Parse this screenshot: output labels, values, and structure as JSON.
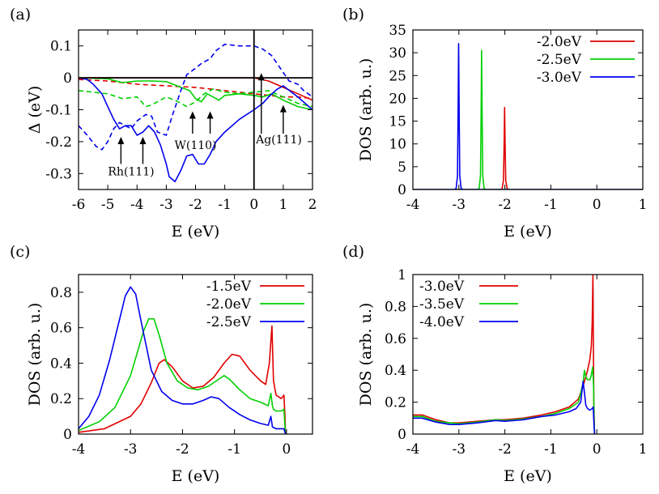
{
  "chart_data": [
    {
      "panel": "(a)",
      "type": "line",
      "xlabel": "E (eV)",
      "ylabel": "Δ (eV)",
      "xlim": [
        -6,
        2
      ],
      "ylim": [
        -0.35,
        0.15
      ],
      "xticks": [
        -6,
        -5,
        -4,
        -3,
        -2,
        -1,
        0,
        1,
        2
      ],
      "xticklabels": [
        "-6",
        "-5",
        "-4",
        "-3",
        "-2",
        "-1",
        "0",
        "1",
        "2"
      ],
      "yticks": [
        0.1,
        0,
        -0.1,
        -0.2,
        -0.3
      ],
      "yticklabels": [
        "0.1",
        "0",
        "-0.1",
        "-0.2",
        "-0.3"
      ],
      "zero_lines": {
        "x": 0,
        "y": 0
      },
      "series": [
        {
          "name": "red solid",
          "color": "#e00000",
          "dash": false,
          "x": [
            -6,
            -4,
            -3,
            -2,
            -1,
            -0.5,
            0,
            0.5,
            1,
            1.5,
            2
          ],
          "y": [
            0,
            0,
            0,
            0,
            0,
            0,
            0,
            -0.01,
            -0.03,
            -0.05,
            -0.07
          ]
        },
        {
          "name": "red dashed",
          "color": "#e00000",
          "dash": true,
          "x": [
            -6,
            -5,
            -4,
            -3,
            -2,
            -1,
            0,
            0.5,
            1,
            1.5,
            2
          ],
          "y": [
            -0.005,
            -0.01,
            -0.02,
            -0.025,
            -0.03,
            -0.04,
            -0.05,
            -0.055,
            -0.06,
            -0.06,
            -0.065
          ]
        },
        {
          "name": "green solid",
          "color": "#00d000",
          "dash": false,
          "x": [
            -6,
            -5,
            -4.5,
            -4,
            -3.5,
            -3,
            -2.5,
            -2.2,
            -2,
            -1.8,
            -1.6,
            -1.4,
            -1.2,
            -1,
            -0.5,
            0,
            0.3,
            0.6,
            1,
            1.5,
            2
          ],
          "y": [
            0,
            -0.003,
            -0.015,
            -0.01,
            -0.01,
            -0.012,
            -0.03,
            -0.04,
            -0.065,
            -0.075,
            -0.05,
            -0.06,
            -0.07,
            -0.055,
            -0.05,
            -0.055,
            -0.06,
            -0.05,
            -0.07,
            -0.09,
            -0.1
          ]
        },
        {
          "name": "green dashed",
          "color": "#00d000",
          "dash": true,
          "x": [
            -6,
            -5,
            -4.5,
            -4,
            -3.7,
            -3.5,
            -3,
            -2.7,
            -2.3,
            -2,
            -1.7,
            -1.4,
            -1,
            -0.5,
            0,
            0.5,
            1,
            1.5,
            2
          ],
          "y": [
            -0.04,
            -0.05,
            -0.065,
            -0.06,
            -0.09,
            -0.085,
            -0.06,
            -0.07,
            -0.09,
            -0.075,
            -0.05,
            -0.035,
            -0.045,
            -0.05,
            -0.045,
            -0.04,
            -0.06,
            -0.08,
            -0.09
          ]
        },
        {
          "name": "blue solid",
          "color": "#0000ee",
          "dash": false,
          "x": [
            -6,
            -5.7,
            -5.5,
            -5.2,
            -5,
            -4.8,
            -4.6,
            -4.4,
            -4.2,
            -4,
            -3.8,
            -3.6,
            -3.4,
            -3.2,
            -3,
            -2.9,
            -2.7,
            -2.5,
            -2.3,
            -2.1,
            -1.9,
            -1.7,
            -1.5,
            -1.3,
            -1,
            -0.5,
            0,
            0.3,
            0.5,
            0.8,
            1,
            1.5,
            2
          ],
          "y": [
            0,
            -0.005,
            -0.02,
            -0.05,
            -0.09,
            -0.13,
            -0.16,
            -0.15,
            -0.15,
            -0.18,
            -0.17,
            -0.15,
            -0.17,
            -0.21,
            -0.27,
            -0.31,
            -0.325,
            -0.29,
            -0.245,
            -0.24,
            -0.27,
            -0.27,
            -0.24,
            -0.2,
            -0.17,
            -0.13,
            -0.1,
            -0.08,
            -0.06,
            -0.035,
            -0.025,
            -0.06,
            -0.1
          ]
        },
        {
          "name": "blue dashed",
          "color": "#0000ee",
          "dash": true,
          "x": [
            -6,
            -5.7,
            -5.4,
            -5.2,
            -5,
            -4.8,
            -4.6,
            -4.4,
            -4.2,
            -4,
            -3.7,
            -3.5,
            -3.3,
            -3,
            -2.8,
            -2.5,
            -2.3,
            -2,
            -1.8,
            -1.5,
            -1.3,
            -1,
            -0.5,
            0,
            0.3,
            0.6,
            0.9,
            1.2,
            1.5,
            1.7,
            2
          ],
          "y": [
            -0.15,
            -0.18,
            -0.215,
            -0.225,
            -0.2,
            -0.16,
            -0.14,
            -0.15,
            -0.16,
            -0.135,
            -0.115,
            -0.12,
            -0.17,
            -0.18,
            -0.12,
            -0.04,
            0.01,
            0.03,
            0.045,
            0.06,
            0.085,
            0.105,
            0.1,
            0.1,
            0.09,
            0.07,
            0.03,
            -0.01,
            -0.02,
            -0.04,
            -0.06
          ]
        }
      ],
      "annotations": [
        {
          "text": "Rh(111)",
          "pos": [
            -4.2,
            -0.305
          ],
          "arrows": [
            [
              -4.55,
              -0.27,
              -4.55,
              -0.185
            ],
            [
              -3.8,
              -0.27,
              -3.8,
              -0.185
            ]
          ]
        },
        {
          "text": "W(110)",
          "pos": [
            -2.0,
            -0.223
          ],
          "arrows": [
            [
              -2.1,
              -0.175,
              -2.1,
              -0.105
            ],
            [
              -1.5,
              -0.175,
              -1.5,
              -0.105
            ]
          ]
        },
        {
          "text": "Ag(111)",
          "pos": [
            0.85,
            -0.205
          ],
          "arrows": [
            [
              0.25,
              -0.175,
              0.25,
              0.015
            ],
            [
              1.0,
              -0.175,
              1.0,
              -0.085
            ]
          ]
        }
      ]
    },
    {
      "panel": "(b)",
      "type": "line",
      "xlabel": "E (eV)",
      "ylabel": "DOS (arb. u.)",
      "xlim": [
        -4,
        1
      ],
      "ylim": [
        0,
        35
      ],
      "xticks": [
        -4,
        -3,
        -2,
        -1,
        0,
        1
      ],
      "xticklabels": [
        "-4",
        "-3",
        "-2",
        "-1",
        "0",
        "1"
      ],
      "yticks": [
        0,
        5,
        10,
        15,
        20,
        25,
        30,
        35
      ],
      "yticklabels": [
        "0",
        "5",
        "10",
        "15",
        "20",
        "25",
        "30",
        "35"
      ],
      "legend_position": "top-right",
      "series": [
        {
          "name": "-2.0eV",
          "color": "#e00000",
          "x": [
            -4,
            -2.1,
            -2.06,
            -2.03,
            -2.015,
            -2.005,
            -1.995,
            -1.98,
            -1.95,
            -1.9,
            1
          ],
          "y": [
            0,
            0,
            0.2,
            2,
            10,
            18,
            10,
            2,
            0.2,
            0,
            0
          ]
        },
        {
          "name": "-2.5eV",
          "color": "#00d000",
          "x": [
            -4,
            -2.6,
            -2.56,
            -2.53,
            -2.515,
            -2.505,
            -2.495,
            -2.48,
            -2.45,
            -2.4,
            1
          ],
          "y": [
            0,
            0,
            0.2,
            3,
            17,
            30.5,
            17,
            3,
            0.2,
            0,
            0
          ]
        },
        {
          "name": "-3.0eV",
          "color": "#0000ee",
          "x": [
            -4,
            -3.1,
            -3.06,
            -3.03,
            -3.015,
            -3.005,
            -2.995,
            -2.98,
            -2.95,
            -2.9,
            1
          ],
          "y": [
            0,
            0,
            0.2,
            3,
            18,
            32,
            18,
            3,
            0.2,
            0,
            0
          ]
        }
      ]
    },
    {
      "panel": "(c)",
      "type": "line",
      "xlabel": "E (eV)",
      "ylabel": "DOS (arb. u.)",
      "xlim": [
        -4,
        0.5
      ],
      "ylim": [
        0,
        0.9
      ],
      "xticks": [
        -4,
        -3,
        -2,
        -1,
        0
      ],
      "xticklabels": [
        "-4",
        "-3",
        "-2",
        "-1",
        "0"
      ],
      "yticks": [
        0,
        0.2,
        0.4,
        0.6,
        0.8
      ],
      "yticklabels": [
        "0",
        "0.2",
        "0.4",
        "0.6",
        "0.8"
      ],
      "legend_position": "top-right",
      "series": [
        {
          "name": "-1.5eV",
          "color": "#e00000",
          "x": [
            -4,
            -3.5,
            -3,
            -2.8,
            -2.6,
            -2.45,
            -2.35,
            -2.2,
            -2,
            -1.8,
            -1.6,
            -1.4,
            -1.2,
            -1.05,
            -0.9,
            -0.7,
            -0.5,
            -0.4,
            -0.33,
            -0.28,
            -0.25,
            -0.2,
            -0.1,
            -0.05,
            -0.03,
            -0.02
          ],
          "y": [
            0.01,
            0.03,
            0.1,
            0.17,
            0.29,
            0.4,
            0.42,
            0.38,
            0.3,
            0.26,
            0.27,
            0.32,
            0.4,
            0.45,
            0.44,
            0.36,
            0.3,
            0.28,
            0.4,
            0.61,
            0.3,
            0.22,
            0.2,
            0.22,
            0.1,
            0
          ]
        },
        {
          "name": "-2.0eV",
          "color": "#00d000",
          "x": [
            -4,
            -3.6,
            -3.3,
            -3,
            -2.85,
            -2.75,
            -2.65,
            -2.55,
            -2.45,
            -2.3,
            -2.1,
            -1.9,
            -1.7,
            -1.5,
            -1.3,
            -1.2,
            -1.1,
            -0.9,
            -0.7,
            -0.5,
            -0.35,
            -0.3,
            -0.27,
            -0.25,
            -0.2,
            -0.1,
            -0.05,
            -0.02
          ],
          "y": [
            0.02,
            0.07,
            0.15,
            0.33,
            0.48,
            0.58,
            0.65,
            0.65,
            0.56,
            0.4,
            0.3,
            0.26,
            0.25,
            0.27,
            0.31,
            0.33,
            0.31,
            0.25,
            0.2,
            0.18,
            0.16,
            0.23,
            0.16,
            0.14,
            0.13,
            0.13,
            0.14,
            0
          ]
        },
        {
          "name": "-2.5eV",
          "color": "#0000ee",
          "x": [
            -4,
            -3.8,
            -3.6,
            -3.4,
            -3.2,
            -3.1,
            -3.0,
            -2.9,
            -2.8,
            -2.6,
            -2.4,
            -2.2,
            -2,
            -1.8,
            -1.6,
            -1.45,
            -1.3,
            -1.1,
            -0.9,
            -0.7,
            -0.5,
            -0.35,
            -0.3,
            -0.27,
            -0.2,
            -0.1,
            -0.05,
            -0.02
          ],
          "y": [
            0.03,
            0.1,
            0.22,
            0.42,
            0.66,
            0.78,
            0.83,
            0.79,
            0.64,
            0.36,
            0.24,
            0.19,
            0.17,
            0.17,
            0.19,
            0.21,
            0.2,
            0.15,
            0.11,
            0.08,
            0.06,
            0.05,
            0.1,
            0.04,
            0.03,
            0.03,
            0.03,
            0
          ]
        }
      ]
    },
    {
      "panel": "(d)",
      "type": "line",
      "xlabel": "E (eV)",
      "ylabel": "DOS (arb. u.)",
      "xlim": [
        -4,
        1
      ],
      "ylim": [
        0,
        1
      ],
      "xticks": [
        -4,
        -3,
        -2,
        -1,
        0,
        1
      ],
      "xticklabels": [
        "-4",
        "-3",
        "-2",
        "-1",
        "0",
        "1"
      ],
      "yticks": [
        0,
        0.2,
        0.4,
        0.6,
        0.8,
        1
      ],
      "yticklabels": [
        "0",
        "0.2",
        "0.4",
        "0.6",
        "0.8",
        "1"
      ],
      "legend_position": "top-left",
      "series": [
        {
          "name": "-3.0eV",
          "color": "#e00000",
          "x": [
            -4,
            -3.8,
            -3.5,
            -3.2,
            -3,
            -2.6,
            -2.2,
            -2,
            -1.6,
            -1.2,
            -0.9,
            -0.6,
            -0.4,
            -0.3,
            -0.25,
            -0.2,
            -0.15,
            -0.12,
            -0.1,
            -0.085,
            -0.075,
            -0.065,
            -0.05
          ],
          "y": [
            0.12,
            0.12,
            0.09,
            0.07,
            0.07,
            0.08,
            0.09,
            0.09,
            0.1,
            0.12,
            0.14,
            0.17,
            0.22,
            0.3,
            0.35,
            0.4,
            0.47,
            0.55,
            0.7,
            1.0,
            0.6,
            0.2,
            0
          ]
        },
        {
          "name": "-3.5eV",
          "color": "#00d000",
          "x": [
            -4,
            -3.8,
            -3.5,
            -3.2,
            -3,
            -2.6,
            -2.2,
            -2,
            -1.6,
            -1.2,
            -0.9,
            -0.6,
            -0.4,
            -0.3,
            -0.27,
            -0.24,
            -0.2,
            -0.15,
            -0.12,
            -0.09,
            -0.07,
            -0.06,
            -0.05
          ],
          "y": [
            0.11,
            0.11,
            0.08,
            0.07,
            0.065,
            0.075,
            0.09,
            0.085,
            0.095,
            0.11,
            0.13,
            0.16,
            0.2,
            0.32,
            0.4,
            0.36,
            0.34,
            0.34,
            0.37,
            0.42,
            0.3,
            0.1,
            0
          ]
        },
        {
          "name": "-4.0eV",
          "color": "#0000ee",
          "x": [
            -4,
            -3.8,
            -3.5,
            -3.2,
            -3,
            -2.6,
            -2.2,
            -2,
            -1.6,
            -1.2,
            -0.9,
            -0.6,
            -0.45,
            -0.35,
            -0.3,
            -0.27,
            -0.24,
            -0.2,
            -0.15,
            -0.1,
            -0.08,
            -0.06,
            -0.05
          ],
          "y": [
            0.1,
            0.1,
            0.075,
            0.06,
            0.06,
            0.07,
            0.085,
            0.08,
            0.09,
            0.11,
            0.12,
            0.14,
            0.16,
            0.2,
            0.33,
            0.26,
            0.18,
            0.16,
            0.15,
            0.16,
            0.17,
            0.05,
            0
          ]
        }
      ]
    }
  ]
}
